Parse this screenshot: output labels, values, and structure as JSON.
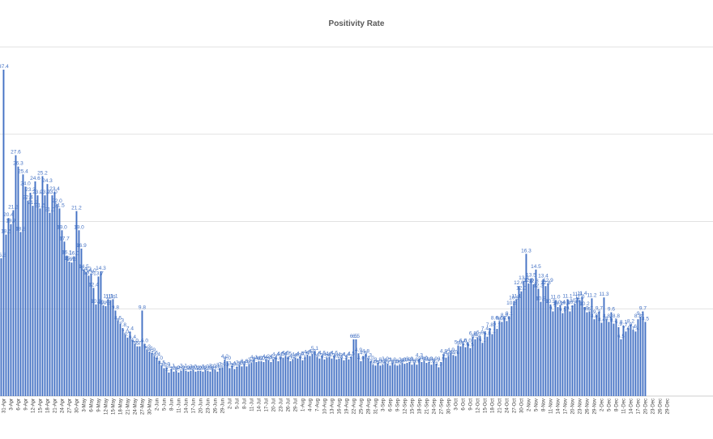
{
  "chart_data": {
    "type": "bar",
    "title": "Positivity Rate",
    "xlabel": "",
    "ylabel": "",
    "ylim": [
      0,
      40
    ],
    "grid": true,
    "legend": "none",
    "color": "#4472c4",
    "x_start": "2020-03-28",
    "tick_labels": [
      "31-Apr",
      "3-Apr",
      "6-Apr",
      "9-Apr",
      "12-Apr",
      "15-Apr",
      "18-Apr",
      "21-Apr",
      "24-Apr",
      "27-Apr",
      "30-Apr",
      "3-May",
      "6-May",
      "9-May",
      "12-May",
      "15-May",
      "18-May",
      "21-May",
      "24-May",
      "27-May",
      "30-May",
      "2-Jun",
      "5-Jun",
      "8-Jun",
      "11-Jun",
      "14-Jun",
      "17-Jun",
      "20-Jun",
      "23-Jun",
      "26-Jun",
      "29-Jun",
      "2-Jul",
      "5-Jul",
      "8-Jul",
      "11-Jul",
      "14-Jul",
      "17-Jul",
      "20-Jul",
      "23-Jul",
      "26-Jul",
      "29-Jul",
      "1-Aug",
      "4-Aug",
      "7-Aug",
      "10-Aug",
      "13-Aug",
      "16-Aug",
      "19-Aug",
      "22-Aug",
      "25-Aug",
      "28-Aug",
      "31-Aug",
      "3-Sep",
      "6-Sep",
      "9-Sep",
      "12-Sep",
      "15-Sep",
      "18-Sep",
      "21-Sep",
      "24-Sep",
      "27-Sep",
      "30-Sep",
      "3-Oct",
      "6-Oct",
      "9-Oct",
      "12-Oct",
      "15-Oct",
      "18-Oct",
      "21-Oct",
      "24-Oct",
      "27-Oct",
      "30-Oct",
      "2-Nov",
      "5-Nov",
      "8-Nov",
      "11-Nov",
      "14-Nov",
      "17-Nov",
      "20-Nov",
      "23-Nov",
      "26-Nov",
      "29-Nov",
      "2-Dec",
      "5-Dec",
      "8-Dec",
      "11-Dec",
      "14-Dec",
      "17-Dec",
      "20-Dec",
      "23-Dec",
      "26-Dec",
      "29-Dec"
    ],
    "values": [
      15.8,
      37.4,
      18.5,
      20.4,
      19.7,
      21.3,
      27.6,
      26.3,
      18.8,
      25.4,
      24.0,
      22.4,
      23.3,
      21.8,
      24.6,
      23.0,
      21.5,
      25.2,
      23.0,
      24.3,
      21.0,
      23.0,
      23.4,
      22.0,
      21.5,
      19.0,
      17.7,
      16.1,
      15.4,
      15.3,
      16.0,
      21.2,
      19.0,
      16.9,
      14.5,
      14.2,
      13.8,
      14.0,
      12.4,
      10.5,
      13.7,
      14.3,
      10.4,
      10.3,
      11.1,
      11.0,
      11.1,
      9.8,
      8.6,
      8.3,
      7.8,
      7.0,
      6.7,
      7.4,
      6.4,
      6.0,
      5.7,
      5.7,
      9.8,
      6.0,
      5.3,
      5.1,
      4.9,
      4.6,
      4.4,
      4.0,
      3.5,
      3.2,
      3.3,
      2.7,
      3.1,
      2.8,
      2.9,
      2.7,
      2.9,
      3.1,
      2.9,
      2.8,
      2.9,
      3.0,
      2.8,
      2.9,
      2.9,
      2.8,
      3.0,
      2.9,
      2.8,
      3.1,
      3.0,
      2.8,
      3.2,
      3.3,
      4.2,
      4.0,
      3.2,
      3.4,
      3.1,
      3.3,
      3.5,
      3.4,
      3.6,
      3.4,
      3.6,
      3.8,
      4.1,
      3.9,
      4.0,
      4.0,
      3.9,
      4.2,
      4.1,
      3.9,
      4.2,
      4.4,
      4.0,
      4.5,
      4.4,
      4.6,
      4.5,
      4.0,
      4.2,
      4.4,
      4.3,
      4.5,
      4.1,
      4.5,
      4.7,
      4.6,
      4.8,
      5.1,
      4.5,
      4.3,
      4.6,
      4.2,
      4.4,
      4.5,
      4.3,
      4.6,
      4.2,
      4.3,
      4.4,
      4.1,
      4.4,
      4.2,
      4.5,
      6.5,
      6.5,
      4.9,
      4.0,
      4.6,
      4.8,
      4.3,
      4.0,
      3.6,
      3.5,
      3.8,
      3.5,
      3.6,
      3.9,
      3.7,
      3.5,
      3.8,
      3.6,
      3.5,
      3.6,
      3.8,
      3.7,
      3.8,
      3.9,
      3.6,
      3.8,
      3.6,
      4.3,
      3.9,
      4.0,
      3.8,
      3.9,
      3.6,
      3.9,
      3.7,
      3.3,
      3.9,
      4.8,
      4.4,
      4.6,
      4.9,
      4.7,
      4.6,
      5.8,
      5.7,
      6.0,
      5.6,
      6.0,
      5.5,
      6.8,
      6.5,
      6.7,
      6.9,
      6.1,
      7.4,
      6.8,
      7.8,
      7.1,
      8.6,
      7.7,
      8.6,
      8.5,
      8.9,
      8.6,
      9.1,
      10.3,
      10.9,
      11.1,
      12.6,
      12.0,
      13.2,
      16.3,
      12.9,
      13.5,
      12.8,
      14.5,
      12.3,
      10.8,
      13.4,
      12.6,
      12.9,
      10.5,
      9.7,
      11.0,
      10.2,
      10.4,
      9.5,
      10.3,
      11.1,
      9.7,
      10.4,
      10.6,
      11.3,
      11.0,
      11.4,
      10.2,
      9.6,
      9.7,
      11.2,
      8.8,
      9.3,
      9.7,
      8.4,
      11.3,
      8.8,
      8.5,
      9.6,
      8.3,
      8.8,
      7.9,
      6.5,
      8.1,
      7.4,
      7.8,
      8.2,
      7.6,
      7.4,
      8.8,
      9.1,
      9.7,
      8.5
    ]
  }
}
